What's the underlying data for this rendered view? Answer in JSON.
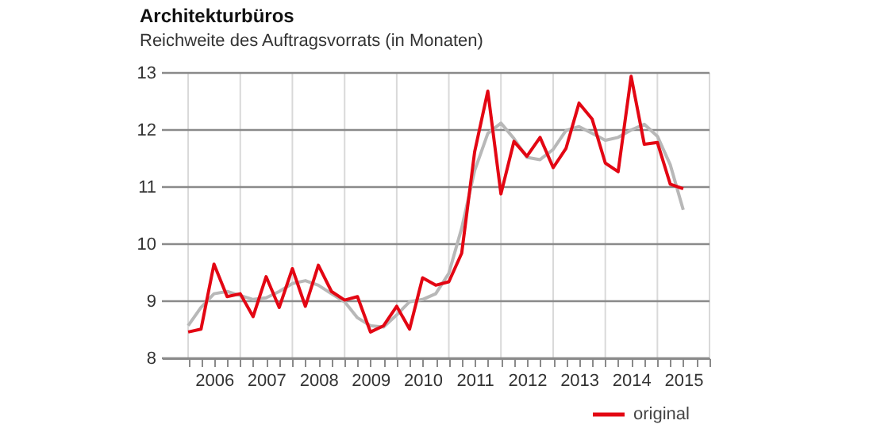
{
  "chart_data": {
    "type": "line",
    "title": "Architekturbüros",
    "subtitle": "Reichweite des Auftragsvorrats (in Monaten)",
    "x": [
      "2006-01",
      "2006-04",
      "2006-07",
      "2006-10",
      "2007-01",
      "2007-04",
      "2007-07",
      "2007-10",
      "2008-01",
      "2008-04",
      "2008-07",
      "2008-10",
      "2009-01",
      "2009-04",
      "2009-07",
      "2009-10",
      "2010-01",
      "2010-04",
      "2010-07",
      "2010-10",
      "2011-01",
      "2011-04",
      "2011-07",
      "2011-10",
      "2012-01",
      "2012-04",
      "2012-07",
      "2012-10",
      "2013-01",
      "2013-04",
      "2013-07",
      "2013-10",
      "2014-01",
      "2014-04",
      "2014-07",
      "2014-10",
      "2015-01",
      "2015-04",
      "2015-07"
    ],
    "series": [
      {
        "name": null,
        "color": "#b8b8b8",
        "values": [
          8.57,
          8.89,
          9.13,
          9.17,
          9.1,
          9.03,
          9.06,
          9.17,
          9.31,
          9.36,
          9.28,
          9.13,
          8.99,
          8.71,
          8.57,
          8.55,
          8.76,
          8.99,
          9.03,
          9.13,
          9.49,
          10.28,
          11.29,
          11.94,
          12.12,
          11.85,
          11.52,
          11.48,
          11.66,
          11.99,
          12.06,
          11.94,
          11.82,
          11.87,
          12.0,
          12.1,
          11.89,
          11.39,
          10.6
        ]
      },
      {
        "name": "original",
        "color": "#e30613",
        "values": [
          8.46,
          8.51,
          9.65,
          9.08,
          9.13,
          8.73,
          9.43,
          8.89,
          9.57,
          8.91,
          9.63,
          9.17,
          9.02,
          9.08,
          8.46,
          8.57,
          8.91,
          8.51,
          9.41,
          9.28,
          9.34,
          9.84,
          11.62,
          12.68,
          10.88,
          11.8,
          11.54,
          11.87,
          11.34,
          11.68,
          12.47,
          12.19,
          11.42,
          11.27,
          12.94,
          11.75,
          11.78,
          11.05,
          10.97
        ]
      }
    ],
    "xlim": [
      "2005-07",
      "2016-01"
    ],
    "xticks": [
      {
        "value": "2006-01",
        "label": null
      },
      {
        "value": "2006-04",
        "label": null
      },
      {
        "value": "2006-07",
        "label": "2006"
      },
      {
        "value": "2006-10",
        "label": null
      },
      {
        "value": "2007-01",
        "label": null
      },
      {
        "value": "2007-04",
        "label": null
      },
      {
        "value": "2007-07",
        "label": "2007"
      },
      {
        "value": "2007-10",
        "label": null
      },
      {
        "value": "2008-01",
        "label": null
      },
      {
        "value": "2008-04",
        "label": null
      },
      {
        "value": "2008-07",
        "label": "2008"
      },
      {
        "value": "2008-10",
        "label": null
      },
      {
        "value": "2009-01",
        "label": null
      },
      {
        "value": "2009-04",
        "label": null
      },
      {
        "value": "2009-07",
        "label": "2009"
      },
      {
        "value": "2009-10",
        "label": null
      },
      {
        "value": "2010-01",
        "label": null
      },
      {
        "value": "2010-04",
        "label": null
      },
      {
        "value": "2010-07",
        "label": "2010"
      },
      {
        "value": "2010-10",
        "label": null
      },
      {
        "value": "2011-01",
        "label": null
      },
      {
        "value": "2011-04",
        "label": null
      },
      {
        "value": "2011-07",
        "label": "2011"
      },
      {
        "value": "2011-10",
        "label": null
      },
      {
        "value": "2012-01",
        "label": null
      },
      {
        "value": "2012-04",
        "label": null
      },
      {
        "value": "2012-07",
        "label": "2012"
      },
      {
        "value": "2012-10",
        "label": null
      },
      {
        "value": "2013-01",
        "label": null
      },
      {
        "value": "2013-04",
        "label": null
      },
      {
        "value": "2013-07",
        "label": "2013"
      },
      {
        "value": "2013-10",
        "label": null
      },
      {
        "value": "2014-01",
        "label": null
      },
      {
        "value": "2014-04",
        "label": null
      },
      {
        "value": "2014-07",
        "label": "2014"
      },
      {
        "value": "2014-10",
        "label": null
      },
      {
        "value": "2015-01",
        "label": null
      },
      {
        "value": "2015-04",
        "label": null
      },
      {
        "value": "2015-07",
        "label": "2015"
      },
      {
        "value": "2015-10",
        "label": null
      },
      {
        "value": "2016-01",
        "label": null
      }
    ],
    "ylim": [
      8,
      13
    ],
    "yticks": [
      8,
      9,
      10,
      11,
      12,
      13
    ],
    "grid": true,
    "legend": "bottom right",
    "line_style": "solid",
    "marker": "none"
  }
}
